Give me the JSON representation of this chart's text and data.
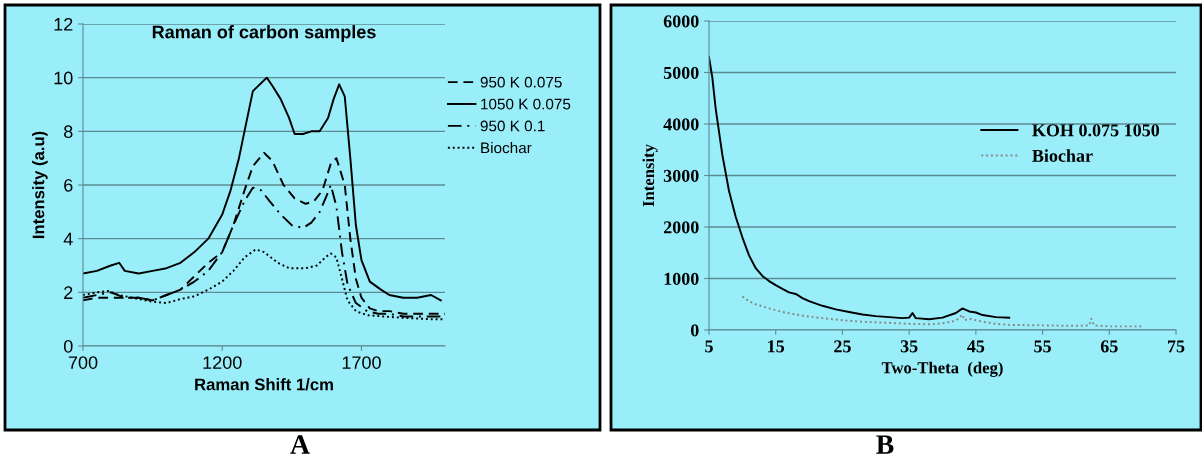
{
  "chart_data": [
    {
      "type": "line",
      "title": "Raman of carbon samples",
      "xlabel": "Raman Shift 1/cm",
      "ylabel": "Intensity (a.u)",
      "xlim": [
        700,
        2000
      ],
      "xticks": [
        700,
        1200,
        1700
      ],
      "ylim": [
        0,
        12
      ],
      "yticks": [
        0,
        2,
        4,
        6,
        8,
        10,
        12
      ],
      "grid": "y",
      "legend": "top right",
      "annotations": [
        "A"
      ],
      "series": [
        {
          "name": "950 K 0.075",
          "color": "#000000",
          "line_style": "dashed",
          "x": [
            700,
            750,
            800,
            850,
            900,
            950,
            1000,
            1050,
            1100,
            1150,
            1200,
            1240,
            1280,
            1310,
            1350,
            1380,
            1420,
            1460,
            1500,
            1530,
            1560,
            1590,
            1610,
            1640,
            1660,
            1680,
            1700,
            1730,
            1760,
            1800,
            1850,
            1900,
            1950,
            2000
          ],
          "values": [
            1.7,
            1.8,
            1.8,
            1.8,
            1.8,
            1.7,
            1.9,
            2.1,
            2.6,
            3.1,
            3.5,
            4.5,
            5.8,
            6.7,
            7.2,
            6.9,
            6.0,
            5.5,
            5.3,
            5.4,
            5.8,
            6.8,
            7.0,
            6.0,
            4.0,
            2.5,
            1.8,
            1.4,
            1.3,
            1.3,
            1.2,
            1.2,
            1.2,
            1.2
          ]
        },
        {
          "name": "1050 K 0.075",
          "color": "#000000",
          "line_style": "solid",
          "x": [
            700,
            750,
            800,
            830,
            850,
            900,
            950,
            1000,
            1050,
            1100,
            1150,
            1200,
            1230,
            1260,
            1290,
            1310,
            1340,
            1360,
            1380,
            1410,
            1440,
            1460,
            1490,
            1520,
            1550,
            1580,
            1600,
            1620,
            1640,
            1660,
            1680,
            1700,
            1730,
            1770,
            1800,
            1850,
            1900,
            1950,
            1985
          ],
          "values": [
            2.7,
            2.8,
            3.0,
            3.1,
            2.8,
            2.7,
            2.8,
            2.9,
            3.1,
            3.5,
            4.0,
            4.9,
            5.8,
            7.0,
            8.5,
            9.5,
            9.8,
            10.0,
            9.7,
            9.2,
            8.5,
            7.9,
            7.9,
            8.0,
            8.0,
            8.5,
            9.2,
            9.75,
            9.3,
            7.0,
            4.5,
            3.2,
            2.4,
            2.1,
            1.9,
            1.8,
            1.8,
            1.9,
            1.7
          ]
        },
        {
          "name": "950 K 0.1",
          "color": "#000000",
          "line_style": "dashdot",
          "x": [
            700,
            750,
            800,
            850,
            900,
            950,
            1000,
            1050,
            1100,
            1150,
            1200,
            1240,
            1280,
            1310,
            1340,
            1370,
            1410,
            1450,
            1490,
            1520,
            1550,
            1575,
            1590,
            1610,
            1630,
            1650,
            1680,
            1720,
            1760,
            1800,
            1850,
            1900,
            1950,
            1990
          ],
          "values": [
            1.8,
            1.9,
            2.0,
            1.8,
            1.8,
            1.7,
            1.9,
            2.1,
            2.4,
            2.8,
            3.5,
            4.5,
            5.4,
            5.9,
            5.8,
            5.4,
            4.9,
            4.5,
            4.4,
            4.6,
            5.0,
            5.6,
            6.0,
            5.2,
            3.5,
            2.3,
            1.6,
            1.3,
            1.2,
            1.2,
            1.1,
            1.1,
            1.1,
            1.1
          ]
        },
        {
          "name": "Biochar",
          "color": "#000000",
          "line_style": "dotted",
          "x": [
            700,
            750,
            790,
            830,
            900,
            950,
            1000,
            1050,
            1100,
            1150,
            1200,
            1240,
            1280,
            1320,
            1350,
            1400,
            1440,
            1500,
            1540,
            1570,
            1590,
            1610,
            1630,
            1650,
            1680,
            1720,
            1780,
            1850,
            1950,
            2000
          ],
          "values": [
            1.9,
            2.0,
            2.05,
            1.9,
            1.75,
            1.65,
            1.6,
            1.75,
            1.85,
            2.1,
            2.4,
            2.8,
            3.3,
            3.6,
            3.5,
            3.1,
            2.9,
            2.9,
            3.0,
            3.3,
            3.45,
            3.3,
            2.5,
            1.7,
            1.3,
            1.15,
            1.1,
            1.05,
            1.0,
            1.0
          ]
        }
      ]
    },
    {
      "type": "line",
      "xlabel": "Two-Theta  (deg)",
      "ylabel": "Intensity",
      "xlim": [
        5,
        75
      ],
      "xticks": [
        5,
        15,
        25,
        35,
        45,
        55,
        65,
        75
      ],
      "ylim": [
        0,
        6000
      ],
      "yticks": [
        0,
        1000,
        2000,
        3000,
        4000,
        5000,
        6000
      ],
      "grid": "y",
      "legend": "right",
      "annotations": [
        "B"
      ],
      "series": [
        {
          "name": "KOH 0.075 1050",
          "color": "#000000",
          "line_style": "solid",
          "x": [
            5,
            5.5,
            6,
            7,
            8,
            9,
            10,
            11,
            12,
            13,
            14,
            15,
            16,
            17,
            18,
            19,
            20,
            22,
            24,
            26,
            28,
            30,
            32,
            34,
            35,
            35.5,
            36,
            38,
            40,
            42,
            43,
            44,
            45,
            46,
            48,
            50
          ],
          "values": [
            5300,
            4900,
            4300,
            3400,
            2700,
            2200,
            1800,
            1450,
            1200,
            1050,
            950,
            870,
            800,
            730,
            700,
            620,
            560,
            470,
            400,
            350,
            300,
            270,
            250,
            230,
            240,
            330,
            230,
            210,
            240,
            330,
            420,
            360,
            340,
            290,
            250,
            240
          ]
        },
        {
          "name": "Biochar",
          "color": "#888888",
          "line_style": "dotted",
          "x": [
            10,
            11,
            12,
            14,
            16,
            18,
            20,
            22,
            25,
            28,
            30,
            35,
            38,
            40,
            42,
            43,
            43.3,
            44,
            46,
            48,
            50,
            55,
            60,
            62,
            62.3,
            62.7,
            65,
            70
          ],
          "values": [
            650,
            560,
            500,
            420,
            350,
            300,
            260,
            230,
            190,
            160,
            150,
            120,
            110,
            130,
            180,
            300,
            190,
            220,
            160,
            120,
            100,
            90,
            80,
            90,
            220,
            90,
            70,
            70
          ]
        }
      ]
    }
  ]
}
